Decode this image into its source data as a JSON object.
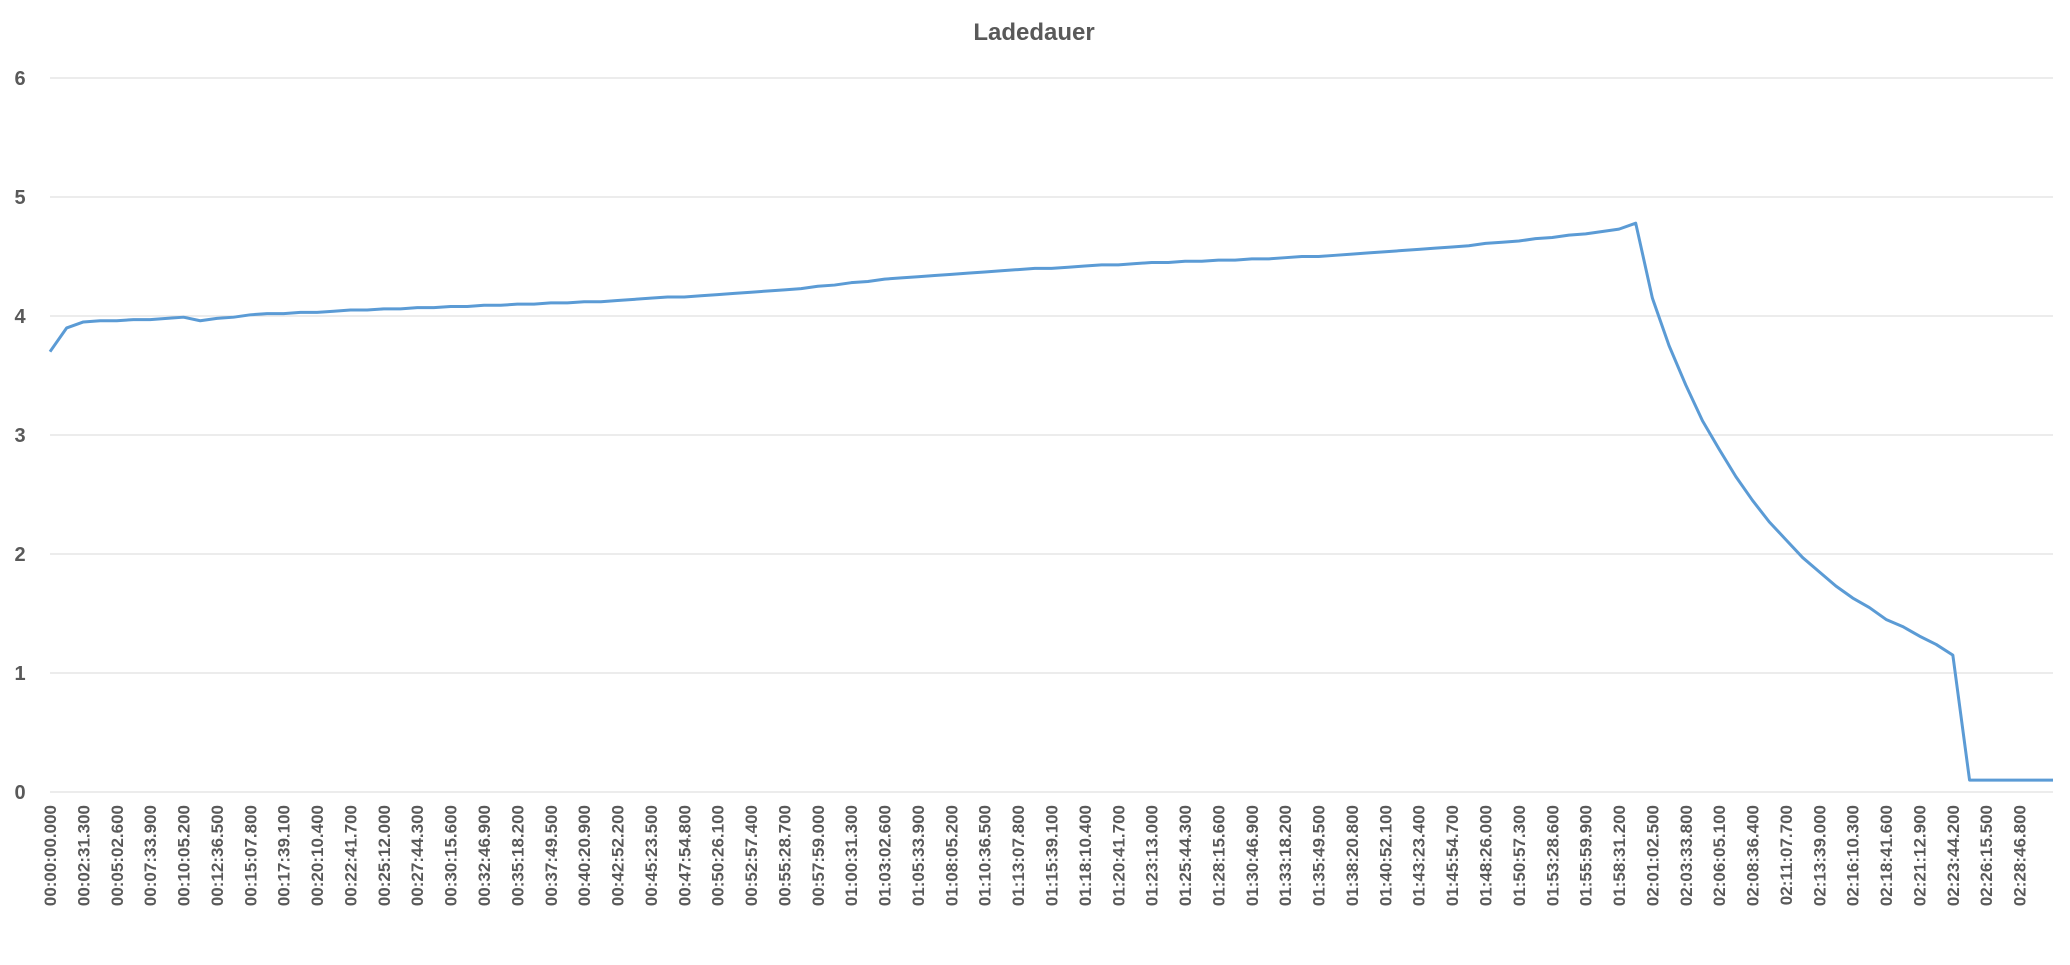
{
  "chart_data": {
    "type": "line",
    "title": "Ladedauer",
    "categories": [
      "00:00:00.000",
      null,
      "00:02:31.300",
      null,
      "00:05:02.600",
      null,
      "00:07:33.900",
      null,
      "00:10:05.200",
      null,
      "00:12:36.500",
      null,
      "00:15:07.800",
      null,
      "00:17:39.100",
      null,
      "00:20:10.400",
      null,
      "00:22:41.700",
      null,
      "00:25:12.000",
      null,
      "00:27:44.300",
      null,
      "00:30:15.600",
      null,
      "00:32:46.900",
      null,
      "00:35:18.200",
      null,
      "00:37:49.500",
      null,
      "00:40:20.900",
      null,
      "00:42:52.200",
      null,
      "00:45:23.500",
      null,
      "00:47:54.800",
      null,
      "00:50:26.100",
      null,
      "00:52:57.400",
      null,
      "00:55:28.700",
      null,
      "00:57:59.000",
      null,
      "01:00:31.300",
      null,
      "01:03:02.600",
      null,
      "01:05:33.900",
      null,
      "01:08:05.200",
      null,
      "01:10:36.500",
      null,
      "01:13:07.800",
      null,
      "01:15:39.100",
      null,
      "01:18:10.400",
      null,
      "01:20:41.700",
      null,
      "01:23:13.000",
      null,
      "01:25:44.300",
      null,
      "01:28:15.600",
      null,
      "01:30:46.900",
      null,
      "01:33:18.200",
      null,
      "01:35:49.500",
      null,
      "01:38:20.800",
      null,
      "01:40:52.100",
      null,
      "01:43:23.400",
      null,
      "01:45:54.700",
      null,
      "01:48:26.000",
      null,
      "01:50:57.300",
      null,
      "01:53:28.600",
      null,
      "01:55:59.900",
      null,
      "01:58:31.200",
      null,
      "02:01:02.500",
      null,
      "02:03:33.800",
      null,
      "02:06:05.100",
      null,
      "02:08:36.400",
      null,
      "02:11:07.700",
      null,
      "02:13:39.000",
      null,
      "02:16:10.300",
      null,
      "02:18:41.600",
      null,
      "02:21:12.900",
      null,
      "02:23:44.200",
      null,
      "02:26:15.500",
      null,
      "02:28:46.800",
      null,
      null
    ],
    "values": [
      3.7,
      3.9,
      3.95,
      3.96,
      3.96,
      3.97,
      3.97,
      3.98,
      3.99,
      3.96,
      3.98,
      3.99,
      4.01,
      4.02,
      4.02,
      4.03,
      4.03,
      4.04,
      4.05,
      4.05,
      4.06,
      4.06,
      4.07,
      4.07,
      4.08,
      4.08,
      4.09,
      4.09,
      4.1,
      4.1,
      4.11,
      4.11,
      4.12,
      4.12,
      4.13,
      4.14,
      4.15,
      4.16,
      4.16,
      4.17,
      4.18,
      4.19,
      4.2,
      4.21,
      4.22,
      4.23,
      4.25,
      4.26,
      4.28,
      4.29,
      4.31,
      4.32,
      4.33,
      4.34,
      4.35,
      4.36,
      4.37,
      4.38,
      4.39,
      4.4,
      4.4,
      4.41,
      4.42,
      4.43,
      4.43,
      4.44,
      4.45,
      4.45,
      4.46,
      4.46,
      4.47,
      4.47,
      4.48,
      4.48,
      4.49,
      4.5,
      4.5,
      4.51,
      4.52,
      4.53,
      4.54,
      4.55,
      4.56,
      4.57,
      4.58,
      4.59,
      4.61,
      4.62,
      4.63,
      4.65,
      4.66,
      4.68,
      4.69,
      4.71,
      4.73,
      4.78,
      4.15,
      3.75,
      3.42,
      3.12,
      2.88,
      2.65,
      2.45,
      2.27,
      2.12,
      1.97,
      1.85,
      1.73,
      1.63,
      1.55,
      1.45,
      1.39,
      1.31,
      1.24,
      1.15,
      0.1,
      0.1,
      0.1,
      0.1,
      0.1,
      0.1
    ],
    "color": "#5b9bd5",
    "ylim": [
      0,
      6
    ],
    "yticks": [
      0,
      1,
      2,
      3,
      4,
      5,
      6
    ],
    "grid": true
  }
}
